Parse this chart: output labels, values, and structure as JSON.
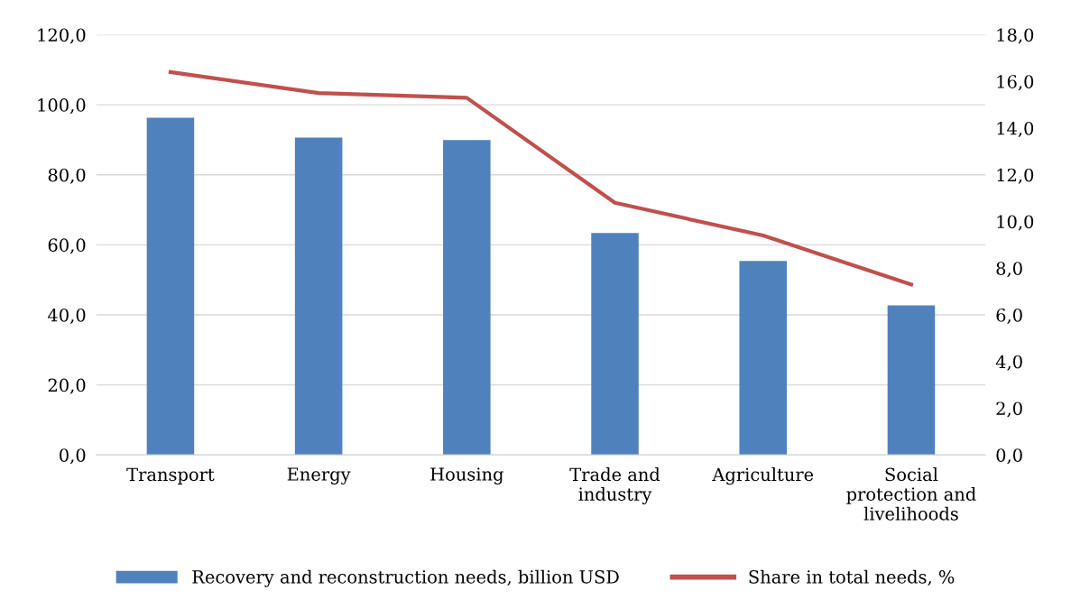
{
  "chart_data": {
    "type": "bar",
    "categories": [
      "Transport",
      "Energy",
      "Housing",
      "Trade and\nindustry",
      "Agriculture",
      "Social\nprotection and\nlivelihoods"
    ],
    "series": [
      {
        "name": "Recovery and reconstruction needs, billion USD",
        "color": "#4f81bd",
        "values": [
          96.3,
          90.6,
          89.9,
          63.4,
          55.4,
          42.7
        ]
      },
      {
        "name": "Share in total needs, %",
        "color": "#c0504d",
        "type": "line",
        "axis": "y2",
        "values": [
          16.4,
          15.5,
          15.3,
          10.8,
          9.4,
          7.3
        ]
      }
    ],
    "ylim": [
      0,
      120
    ],
    "yticks": [
      {
        "value": 0,
        "label": "0,0"
      },
      {
        "value": 20,
        "label": "20,0"
      },
      {
        "value": 40,
        "label": "40,0"
      },
      {
        "value": 60,
        "label": "60,0"
      },
      {
        "value": 80,
        "label": "80,0"
      },
      {
        "value": 100,
        "label": "100,0"
      },
      {
        "value": 120,
        "label": "120,0"
      }
    ],
    "y2lim": [
      0,
      18
    ],
    "y2ticks": [
      {
        "value": 0,
        "label": "0,0"
      },
      {
        "value": 2,
        "label": "2,0"
      },
      {
        "value": 4,
        "label": "4,0"
      },
      {
        "value": 6,
        "label": "6,0"
      },
      {
        "value": 8,
        "label": "8,0"
      },
      {
        "value": 10,
        "label": "10,0"
      },
      {
        "value": 12,
        "label": "12,0"
      },
      {
        "value": 14,
        "label": "14,0"
      },
      {
        "value": 16,
        "label": "16,0"
      },
      {
        "value": 18,
        "label": "18,0"
      }
    ],
    "grid": "y",
    "legend": "bottom",
    "marker": "none",
    "line_style": "solid"
  }
}
